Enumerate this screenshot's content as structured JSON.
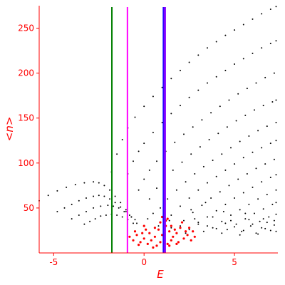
{
  "chart_data": {
    "type": "scatter",
    "title": "",
    "xlabel": "E",
    "ylabel": "<n>",
    "xlim": [
      -5.8,
      7.4
    ],
    "ylim": [
      0,
      275
    ],
    "x_ticks": [
      -5,
      0,
      5
    ],
    "y_ticks": [
      50,
      100,
      150,
      200,
      250
    ],
    "axis_color": "#ff0000",
    "grid": false,
    "legend": "none",
    "vertical_lines": [
      {
        "x": -1.78,
        "color": "#008000"
      },
      {
        "x": -0.92,
        "color": "#ff00ff"
      },
      {
        "x": 1.07,
        "color": "#0000ff"
      },
      {
        "x": 1.12,
        "color": "#8000ff"
      },
      {
        "x": 1.17,
        "color": "#8000ff"
      }
    ],
    "series": [
      {
        "color": "#000000",
        "points": [
          [
            -5.8,
            58
          ],
          [
            -5.3,
            64
          ],
          [
            -4.8,
            69
          ],
          [
            -4.3,
            73
          ],
          [
            -3.8,
            76
          ],
          [
            -3.3,
            78
          ],
          [
            -2.8,
            79
          ],
          [
            -2.5,
            78
          ],
          [
            -2.2,
            75
          ],
          [
            -1.9,
            70
          ],
          [
            -1.6,
            63
          ],
          [
            -1.3,
            56
          ],
          [
            -1.0,
            48
          ],
          [
            -0.7,
            40
          ],
          [
            -0.4,
            33
          ],
          [
            -4.8,
            46
          ],
          [
            -4.4,
            50
          ],
          [
            -4.0,
            54
          ],
          [
            -3.6,
            58
          ],
          [
            -3.2,
            61
          ],
          [
            -2.8,
            63
          ],
          [
            -2.5,
            64
          ],
          [
            -2.2,
            63
          ],
          [
            -1.9,
            60
          ],
          [
            -1.6,
            56
          ],
          [
            -1.3,
            51
          ],
          [
            -1.0,
            46
          ],
          [
            -0.7,
            40
          ],
          [
            -4.0,
            38
          ],
          [
            -3.6,
            42
          ],
          [
            -3.2,
            46
          ],
          [
            -2.8,
            50
          ],
          [
            -2.4,
            52
          ],
          [
            -2.0,
            53
          ],
          [
            -1.7,
            52
          ],
          [
            -1.4,
            50
          ],
          [
            -1.1,
            46
          ],
          [
            -0.8,
            42
          ],
          [
            -0.5,
            37
          ],
          [
            -3.3,
            32
          ],
          [
            -3.0,
            35
          ],
          [
            -2.7,
            38
          ],
          [
            -2.4,
            41
          ],
          [
            -2.1,
            42
          ],
          [
            -1.8,
            43
          ],
          [
            -1.5,
            42
          ],
          [
            -1.2,
            40
          ],
          [
            -0.9,
            37
          ],
          [
            -0.6,
            33
          ],
          [
            -1.8,
            90
          ],
          [
            -1.5,
            110
          ],
          [
            -1.2,
            126
          ],
          [
            -0.9,
            139
          ],
          [
            -0.5,
            151
          ],
          [
            0.0,
            163
          ],
          [
            0.5,
            174
          ],
          [
            1.0,
            184
          ],
          [
            1.5,
            194
          ],
          [
            2.0,
            203
          ],
          [
            2.5,
            212
          ],
          [
            3.0,
            220
          ],
          [
            3.5,
            228
          ],
          [
            4.0,
            235
          ],
          [
            4.5,
            242
          ],
          [
            5.0,
            248
          ],
          [
            5.5,
            254
          ],
          [
            6.0,
            260
          ],
          [
            6.5,
            266
          ],
          [
            7.0,
            271
          ],
          [
            7.3,
            274
          ],
          [
            -0.9,
            88
          ],
          [
            -0.6,
            102
          ],
          [
            -0.3,
            113
          ],
          [
            0.0,
            122
          ],
          [
            0.5,
            134
          ],
          [
            1.0,
            145
          ],
          [
            1.5,
            155
          ],
          [
            2.0,
            164
          ],
          [
            2.5,
            173
          ],
          [
            3.0,
            181
          ],
          [
            3.5,
            189
          ],
          [
            4.0,
            196
          ],
          [
            4.5,
            203
          ],
          [
            5.0,
            210
          ],
          [
            5.5,
            216
          ],
          [
            6.0,
            222
          ],
          [
            6.5,
            228
          ],
          [
            7.0,
            233
          ],
          [
            7.3,
            236
          ],
          [
            -0.3,
            70
          ],
          [
            0.0,
            82
          ],
          [
            0.3,
            92
          ],
          [
            0.7,
            102
          ],
          [
            1.2,
            113
          ],
          [
            1.7,
            123
          ],
          [
            2.2,
            132
          ],
          [
            2.7,
            140
          ],
          [
            3.2,
            148
          ],
          [
            3.7,
            156
          ],
          [
            4.2,
            163
          ],
          [
            4.7,
            170
          ],
          [
            5.2,
            177
          ],
          [
            5.7,
            183
          ],
          [
            6.2,
            189
          ],
          [
            6.7,
            195
          ],
          [
            7.2,
            200
          ],
          [
            0.3,
            60
          ],
          [
            0.7,
            72
          ],
          [
            1.1,
            82
          ],
          [
            1.6,
            92
          ],
          [
            2.1,
            101
          ],
          [
            2.6,
            110
          ],
          [
            3.1,
            118
          ],
          [
            3.6,
            126
          ],
          [
            4.1,
            133
          ],
          [
            4.6,
            140
          ],
          [
            5.1,
            147
          ],
          [
            5.6,
            153
          ],
          [
            6.1,
            159
          ],
          [
            6.6,
            164
          ],
          [
            7.1,
            168
          ],
          [
            7.3,
            170
          ],
          [
            0.9,
            50
          ],
          [
            1.3,
            60
          ],
          [
            1.8,
            70
          ],
          [
            2.3,
            79
          ],
          [
            2.8,
            88
          ],
          [
            3.3,
            96
          ],
          [
            3.8,
            103
          ],
          [
            4.3,
            110
          ],
          [
            4.8,
            117
          ],
          [
            5.3,
            124
          ],
          [
            5.8,
            130
          ],
          [
            6.3,
            136
          ],
          [
            6.8,
            141
          ],
          [
            7.3,
            145
          ],
          [
            1.5,
            42
          ],
          [
            2.0,
            52
          ],
          [
            2.5,
            61
          ],
          [
            3.0,
            70
          ],
          [
            3.5,
            78
          ],
          [
            4.0,
            85
          ],
          [
            4.5,
            92
          ],
          [
            5.0,
            99
          ],
          [
            5.5,
            106
          ],
          [
            6.0,
            112
          ],
          [
            6.5,
            117
          ],
          [
            7.0,
            122
          ],
          [
            7.3,
            125
          ],
          [
            2.2,
            36
          ],
          [
            2.7,
            45
          ],
          [
            3.2,
            53
          ],
          [
            3.7,
            61
          ],
          [
            4.2,
            68
          ],
          [
            4.7,
            75
          ],
          [
            5.2,
            82
          ],
          [
            5.7,
            88
          ],
          [
            6.2,
            94
          ],
          [
            6.7,
            99
          ],
          [
            7.2,
            104
          ],
          [
            3.0,
            32
          ],
          [
            3.5,
            40
          ],
          [
            4.0,
            47
          ],
          [
            4.5,
            54
          ],
          [
            5.0,
            61
          ],
          [
            5.5,
            67
          ],
          [
            6.0,
            73
          ],
          [
            6.5,
            79
          ],
          [
            7.0,
            84
          ],
          [
            7.3,
            87
          ],
          [
            3.8,
            28
          ],
          [
            4.3,
            35
          ],
          [
            4.8,
            42
          ],
          [
            5.3,
            48
          ],
          [
            5.8,
            54
          ],
          [
            6.3,
            60
          ],
          [
            6.8,
            65
          ],
          [
            7.3,
            70
          ],
          [
            4.6,
            26
          ],
          [
            5.1,
            32
          ],
          [
            5.6,
            38
          ],
          [
            6.1,
            44
          ],
          [
            6.6,
            49
          ],
          [
            7.1,
            54
          ],
          [
            7.3,
            56
          ],
          [
            5.4,
            24
          ],
          [
            5.9,
            30
          ],
          [
            6.4,
            35
          ],
          [
            6.9,
            40
          ],
          [
            7.3,
            43
          ],
          [
            6.2,
            22
          ],
          [
            6.7,
            27
          ],
          [
            7.2,
            31
          ],
          [
            1.5,
            28
          ],
          [
            2.0,
            30
          ],
          [
            2.5,
            26
          ],
          [
            3.0,
            34
          ],
          [
            3.5,
            30
          ],
          [
            4.0,
            27
          ],
          [
            4.5,
            33
          ],
          [
            5.0,
            29
          ],
          [
            5.5,
            25
          ],
          [
            6.0,
            32
          ],
          [
            6.5,
            28
          ],
          [
            7.0,
            25
          ],
          [
            2.3,
            22
          ],
          [
            2.8,
            38
          ],
          [
            3.3,
            24
          ],
          [
            3.8,
            40
          ],
          [
            4.3,
            22
          ],
          [
            4.8,
            36
          ],
          [
            5.3,
            20
          ],
          [
            5.8,
            37
          ],
          [
            6.3,
            21
          ],
          [
            6.8,
            34
          ],
          [
            7.3,
            24
          ],
          [
            0.2,
            38
          ],
          [
            0.5,
            44
          ],
          [
            0.8,
            30
          ],
          [
            1.4,
            36
          ],
          [
            2.6,
            48
          ],
          [
            3.4,
            56
          ],
          [
            4.4,
            46
          ],
          [
            5.6,
            44
          ],
          [
            6.6,
            38
          ],
          [
            7.2,
            36
          ]
        ]
      },
      {
        "color": "#ff0000",
        "points": [
          [
            -0.8,
            18
          ],
          [
            -0.6,
            14
          ],
          [
            -0.4,
            20
          ],
          [
            -0.2,
            12
          ],
          [
            0.0,
            16
          ],
          [
            0.2,
            10
          ],
          [
            0.3,
            22
          ],
          [
            0.4,
            14
          ],
          [
            0.6,
            18
          ],
          [
            0.7,
            8
          ],
          [
            0.8,
            26
          ],
          [
            0.9,
            12
          ],
          [
            1.0,
            20
          ],
          [
            1.1,
            16
          ],
          [
            1.2,
            30
          ],
          [
            1.3,
            10
          ],
          [
            1.4,
            24
          ],
          [
            1.5,
            14
          ],
          [
            1.6,
            18
          ],
          [
            1.8,
            22
          ],
          [
            1.9,
            12
          ],
          [
            2.0,
            28
          ],
          [
            2.2,
            16
          ],
          [
            2.4,
            20
          ],
          [
            2.6,
            14
          ],
          [
            2.8,
            18
          ],
          [
            -0.5,
            24
          ],
          [
            -0.3,
            9
          ],
          [
            0.1,
            26
          ],
          [
            0.5,
            6
          ],
          [
            0.9,
            34
          ],
          [
            1.0,
            40
          ],
          [
            1.1,
            44
          ],
          [
            1.2,
            36
          ],
          [
            1.3,
            38
          ],
          [
            1.5,
            30
          ],
          [
            1.7,
            26
          ],
          [
            2.1,
            34
          ],
          [
            2.3,
            24
          ],
          [
            2.5,
            28
          ],
          [
            0.0,
            30
          ],
          [
            -0.1,
            22
          ],
          [
            0.6,
            28
          ],
          [
            1.4,
            8
          ],
          [
            1.8,
            10
          ],
          [
            2.7,
            24
          ]
        ]
      }
    ]
  }
}
